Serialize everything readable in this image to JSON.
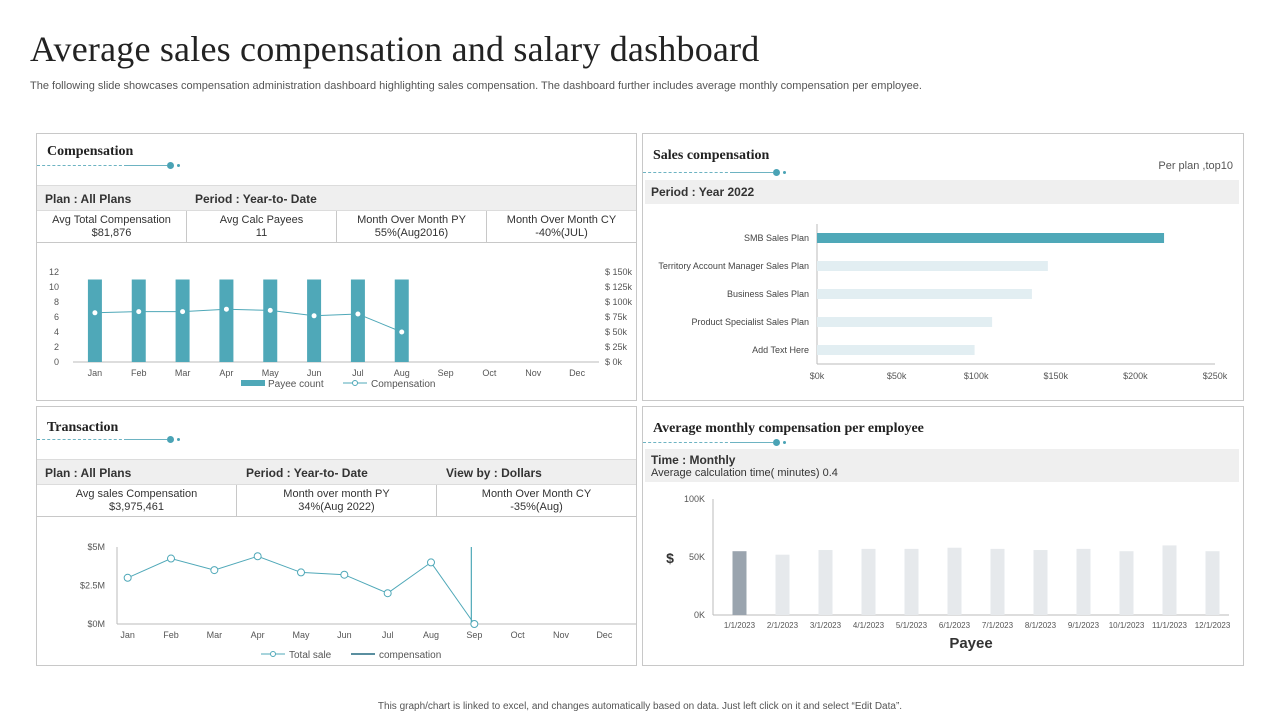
{
  "page": {
    "title": "Average sales compensation and salary dashboard",
    "subtitle": "The following slide showcases compensation administration dashboard highlighting sales compensation. The dashboard further includes average monthly compensation per employee.",
    "footer": "This graph/chart is linked to excel, and changes automatically based on data. Just left click on it and select “Edit Data”."
  },
  "colors": {
    "accent": "#4fa8b8",
    "light_bar": "#e2eef2",
    "grey_bar": "#e6e9ec",
    "dark_bar": "#9aa4ae"
  },
  "compensation": {
    "title": "Compensation",
    "plan": "Plan : All Plans",
    "period": "Period : Year-to- Date",
    "kpis": [
      {
        "label": "Avg Total Compensation",
        "value": "$81,876"
      },
      {
        "label": "Avg Calc Payees",
        "value": "11"
      },
      {
        "label": "Month Over Month PY",
        "value": "55%(Aug2016)"
      },
      {
        "label": "Month Over Month CY",
        "value": "-40%(JUL)"
      }
    ]
  },
  "sales_comp": {
    "title": "Sales compensation",
    "note": "Per plan ,top10",
    "period": "Period : Year 2022"
  },
  "transaction": {
    "title": "Transaction",
    "plan": "Plan : All Plans",
    "period": "Period : Year-to- Date",
    "view": "View by : Dollars",
    "kpis": [
      {
        "label": "Avg sales Compensation",
        "value": "$3,975,461"
      },
      {
        "label": "Month over month PY",
        "value": "34%(Aug 2022)"
      },
      {
        "label": "Month Over Month CY",
        "value": "-35%(Aug)"
      }
    ]
  },
  "avg_monthly": {
    "title": "Average monthly compensation per employee",
    "time": "Time : Monthly",
    "calc": "Average calculation time( minutes)  0.4"
  },
  "chart_data": [
    {
      "id": "compensation",
      "type": "bar",
      "categories": [
        "Jan",
        "Feb",
        "Mar",
        "Apr",
        "May",
        "Jun",
        "Jul",
        "Aug",
        "Sep",
        "Oct",
        "Nov",
        "Dec"
      ],
      "series": [
        {
          "name": "Payee count",
          "type": "bar",
          "axis": "left",
          "values": [
            11,
            11,
            11,
            11,
            11,
            11,
            11,
            11,
            null,
            null,
            null,
            null
          ]
        },
        {
          "name": "Compensation",
          "type": "line",
          "axis": "right",
          "values": [
            82000,
            84000,
            84000,
            88000,
            86000,
            77000,
            80000,
            50000,
            null,
            null,
            null,
            null
          ]
        }
      ],
      "y_left": {
        "min": 0,
        "max": 12,
        "ticks": [
          "0",
          "2",
          "4",
          "6",
          "8",
          "10",
          "12"
        ]
      },
      "y_right": {
        "min": 0,
        "max": 150000,
        "ticks": [
          "$ 0k",
          "$ 25k",
          "$ 50k",
          "$ 75k",
          "$ 100k",
          "$ 125k",
          "$ 150k"
        ]
      },
      "legend": [
        "Payee count",
        "Compensation"
      ]
    },
    {
      "id": "sales_compensation",
      "type": "bar",
      "orientation": "horizontal",
      "categories": [
        "SMB Sales Plan",
        "Territory Account Manager Sales Plan",
        "Business Sales Plan",
        "Product Specialist Sales Plan",
        "Add Text Here"
      ],
      "values": [
        218000,
        145000,
        135000,
        110000,
        99000
      ],
      "xlim": [
        0,
        250000
      ],
      "x_ticks": [
        "$0k",
        "$50k",
        "$100k",
        "$150k",
        "$200k",
        "$250k"
      ]
    },
    {
      "id": "transaction",
      "type": "line",
      "categories": [
        "Jan",
        "Feb",
        "Mar",
        "Apr",
        "May",
        "Jun",
        "Jul",
        "Aug",
        "Sep",
        "Oct",
        "Nov",
        "Dec"
      ],
      "series": [
        {
          "name": "Total sale",
          "values": [
            3000000,
            4250000,
            3500000,
            4400000,
            3350000,
            3200000,
            2000000,
            4000000,
            0,
            null,
            null,
            null
          ]
        },
        {
          "name": "compensation",
          "values": [
            null,
            null,
            null,
            null,
            null,
            null,
            null,
            null,
            5000000,
            null,
            null,
            null
          ]
        }
      ],
      "ylim": [
        0,
        5000000
      ],
      "y_ticks": [
        "$0M",
        "$2.5M",
        "$5M"
      ],
      "legend": [
        "Total sale",
        "compensation"
      ]
    },
    {
      "id": "avg_monthly",
      "type": "bar",
      "categories": [
        "1/1/2023",
        "2/1/2023",
        "3/1/2023",
        "4/1/2023",
        "5/1/2023",
        "6/1/2023",
        "7/1/2023",
        "8/1/2023",
        "9/1/2023",
        "10/1/2023",
        "11/1/2023",
        "12/1/2023"
      ],
      "values": [
        55000,
        52000,
        56000,
        57000,
        57000,
        58000,
        57000,
        56000,
        57000,
        55000,
        60000,
        55000
      ],
      "highlight_index": 0,
      "ylim": [
        0,
        100000
      ],
      "y_ticks": [
        "0K",
        "50K",
        "100K"
      ],
      "ylabel": "$",
      "xlabel": "Payee"
    }
  ]
}
